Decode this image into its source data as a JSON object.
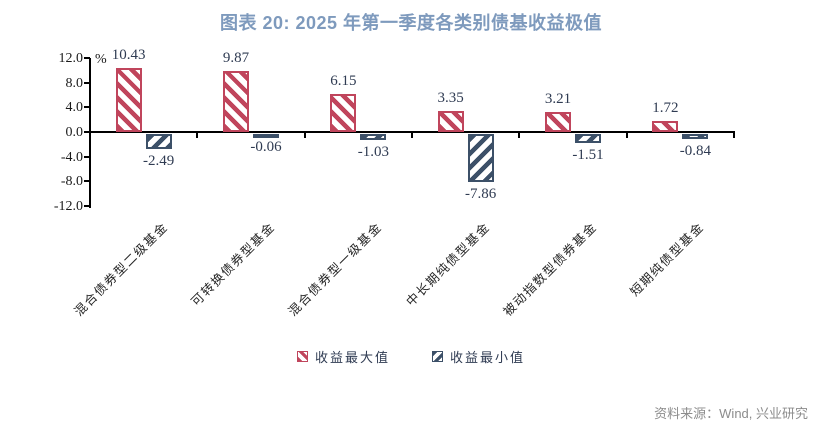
{
  "title": "图表 20: 2025 年第一季度各类别债基收益极值",
  "chart_data": {
    "type": "bar",
    "title": "图表 20: 2025 年第一季度各类别债基收益极值",
    "unit_label": "%",
    "categories": [
      "混合债券型二级基金",
      "可转换债券型基金",
      "混合债券型一级基金",
      "中长期纯债型基金",
      "被动指数型债券基金",
      "短期纯债型基金"
    ],
    "series": [
      {
        "name": "收益最大值",
        "color": "#C0455C",
        "hatch": "\\",
        "values": [
          10.43,
          9.87,
          6.15,
          3.35,
          3.21,
          1.72
        ]
      },
      {
        "name": "收益最小值",
        "color": "#3C5068",
        "hatch": "/",
        "values": [
          -2.49,
          -0.06,
          -1.03,
          -7.86,
          -1.51,
          -0.84
        ]
      }
    ],
    "ylim": [
      -12,
      12
    ],
    "ytick_labels": [
      "12.0",
      "8.0",
      "4.0",
      "0.0",
      "-4.0",
      "-8.0",
      "-12.0"
    ],
    "grid": false,
    "legend_position": "bottom"
  },
  "legend": {
    "max_label": "收益最大值",
    "min_label": "收益最小值"
  },
  "colors": {
    "title": "#7E9ABD",
    "max_series": "#C0455C",
    "min_series": "#3C5068",
    "value_text": "#2F3B52",
    "source_text": "#8C8C8C"
  },
  "source": "资料来源：Wind, 兴业研究"
}
